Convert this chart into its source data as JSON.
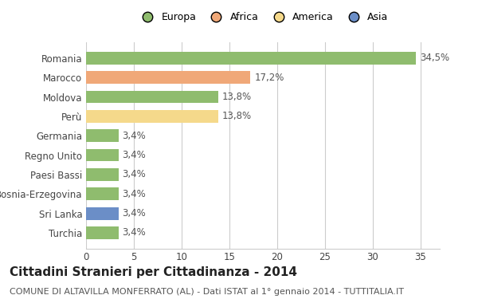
{
  "categories": [
    "Turchia",
    "Sri Lanka",
    "Bosnia-Erzegovina",
    "Paesi Bassi",
    "Regno Unito",
    "Germania",
    "Perù",
    "Moldova",
    "Marocco",
    "Romania"
  ],
  "values": [
    3.4,
    3.4,
    3.4,
    3.4,
    3.4,
    3.4,
    13.8,
    13.8,
    17.2,
    34.5
  ],
  "labels": [
    "3,4%",
    "3,4%",
    "3,4%",
    "3,4%",
    "3,4%",
    "3,4%",
    "13,8%",
    "13,8%",
    "17,2%",
    "34,5%"
  ],
  "colors": [
    "#8fbc6e",
    "#6b8ec7",
    "#8fbc6e",
    "#8fbc6e",
    "#8fbc6e",
    "#8fbc6e",
    "#f5d98b",
    "#8fbc6e",
    "#f0a878",
    "#8fbc6e"
  ],
  "legend_labels": [
    "Europa",
    "Africa",
    "America",
    "Asia"
  ],
  "legend_colors": [
    "#8fbc6e",
    "#f0a878",
    "#f5d98b",
    "#6b8ec7"
  ],
  "title": "Cittadini Stranieri per Cittadinanza - 2014",
  "subtitle": "COMUNE DI ALTAVILLA MONFERRATO (AL) - Dati ISTAT al 1° gennaio 2014 - TUTTITALIA.IT",
  "xlim": [
    0,
    37
  ],
  "xticks": [
    0,
    5,
    10,
    15,
    20,
    25,
    30,
    35
  ],
  "bg_color": "#ffffff",
  "grid_color": "#cccccc",
  "bar_height": 0.65,
  "label_fontsize": 8.5,
  "title_fontsize": 11,
  "subtitle_fontsize": 8,
  "tick_fontsize": 8.5,
  "legend_fontsize": 9
}
